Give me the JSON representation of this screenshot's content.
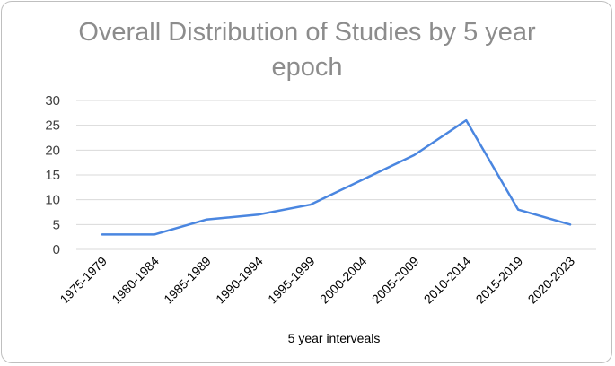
{
  "chart_data": {
    "type": "line",
    "title_lines": [
      "Overall Distribution of Studies by 5 year",
      "epoch"
    ],
    "xlabel": "5 year interveals",
    "ylabel": "",
    "categories": [
      "1975-1979",
      "1980-1984",
      "1985-1989",
      "1990-1994",
      "1995-1999",
      "2000-2004",
      "2005-2009",
      "2010-2014",
      "2015-2019",
      "2020-2023"
    ],
    "series": [
      {
        "values": [
          3,
          3,
          6,
          7,
          9,
          14,
          19,
          26,
          8,
          5
        ],
        "color": "#4a86e0"
      }
    ],
    "ylim": [
      0,
      30
    ],
    "yticks": [
      0,
      5,
      10,
      15,
      20,
      25,
      30
    ],
    "grid": true,
    "legend": "none"
  }
}
